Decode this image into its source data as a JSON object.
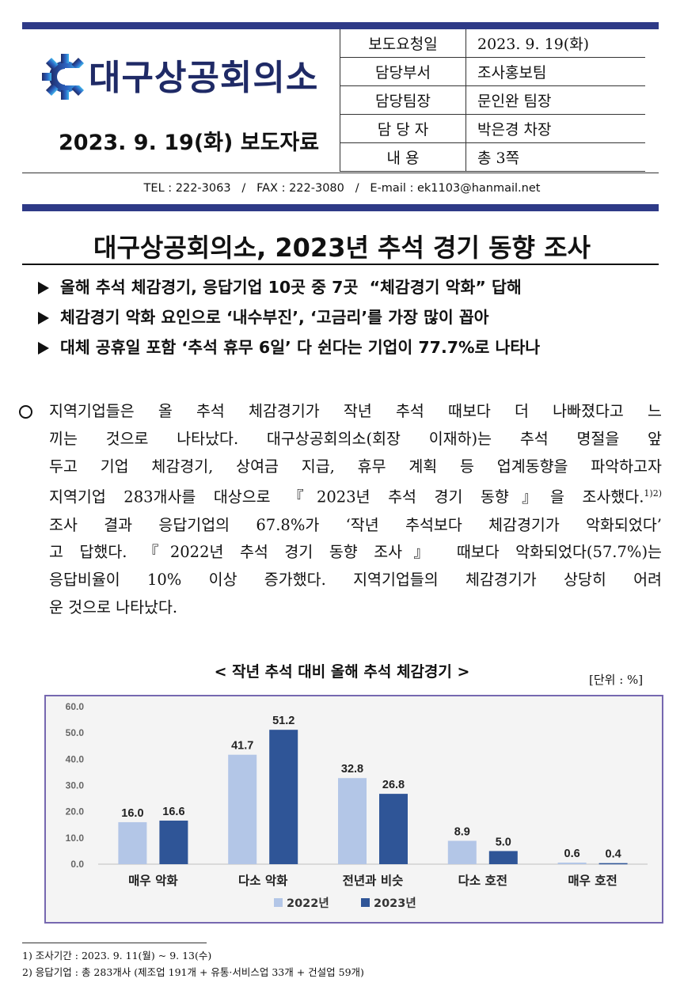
{
  "header": {
    "org_name": "대구상공회의소",
    "release_line": "2023. 9. 19(화) 보도자료",
    "info": [
      {
        "key": "보도요청일",
        "value": "2023. 9. 19(화)"
      },
      {
        "key": "담당부서",
        "value": "조사홍보팀"
      },
      {
        "key": "담당팀장",
        "value": "문인완 팀장"
      },
      {
        "key": "담 당 자",
        "value": "박은경 차장"
      },
      {
        "key": "내 용",
        "value": "총 3쪽"
      }
    ],
    "contact": "TEL : 222-3063   /   FAX : 222-3080   /   E-mail : ek1103@hanmail.net"
  },
  "title": "대구상공회의소, 2023년 추석 경기 동향 조사",
  "bullets": [
    "올해 추석 체감경기, 응답기업 10곳 중 7곳  “체감경기 악화” 답해",
    "체감경기 악화 요인으로 ‘내수부진’, ‘고금리’를 가장 많이 꼽아",
    "대체 공휴일 포함 ‘추석 휴무 6일’ 다 쉰다는 기업이 77.7%로 나타나"
  ],
  "paragraph": {
    "lines": [
      "지역기업들은 올 추석 체감경기가 작년 추석 때보다 더 나빠졌다고 느",
      "끼는 것으로 나타났다. 대구상공회의소(회장 이재하)는 추석 명절을 앞",
      "두고 기업 체감경기, 상여금 지급, 휴무 계획 등 업계동향을 파악하고자",
      "지역기업 283개사를 대상으로 『2023년 추석 경기 동향』을 조사했다.",
      "조사 결과 응답기업의 67.8%가 ‘작년 추석보다 체감경기가 악화되었다’",
      "고 답했다. 『2022년 추석 경기 동향 조사』 때보다 악화되었다(57.7%)는",
      "응답비율이 10% 이상 증가했다. 지역기업들의 체감경기가 상당히 어려",
      "운 것으로 나타났다."
    ],
    "footnote_marks": "1)2)"
  },
  "chart_title": "< 작년 추석 대비 올해 추석 체감경기 >",
  "unit_label": "[단위 : %]",
  "chart_data": {
    "type": "bar",
    "categories": [
      "매우 악화",
      "다소 악화",
      "전년과 비슷",
      "다소 호전",
      "매우 호전"
    ],
    "series": [
      {
        "name": "2022년",
        "values": [
          16.0,
          41.7,
          32.8,
          8.9,
          0.6
        ],
        "color": "#b3c6e7"
      },
      {
        "name": "2023년",
        "values": [
          16.6,
          51.2,
          26.8,
          5.0,
          0.4
        ],
        "color": "#2f5597"
      }
    ],
    "yticks": [
      "0.0",
      "10.0",
      "20.0",
      "30.0",
      "40.0",
      "50.0",
      "60.0"
    ],
    "ylim": [
      0,
      60
    ],
    "legend": "bottom",
    "grid": false
  },
  "footnotes": [
    "1) 조사기간 : 2023. 9. 11(월) ~ 9. 13(수)",
    "2) 응답기업 : 총 283개사 (제조업 191개 + 유통·서비스업 33개 + 건설업 59개)"
  ],
  "colors": {
    "brand_navy": "#2e3a87",
    "logo_blue": "#1f2a66",
    "chart_border": "#7668b0"
  }
}
